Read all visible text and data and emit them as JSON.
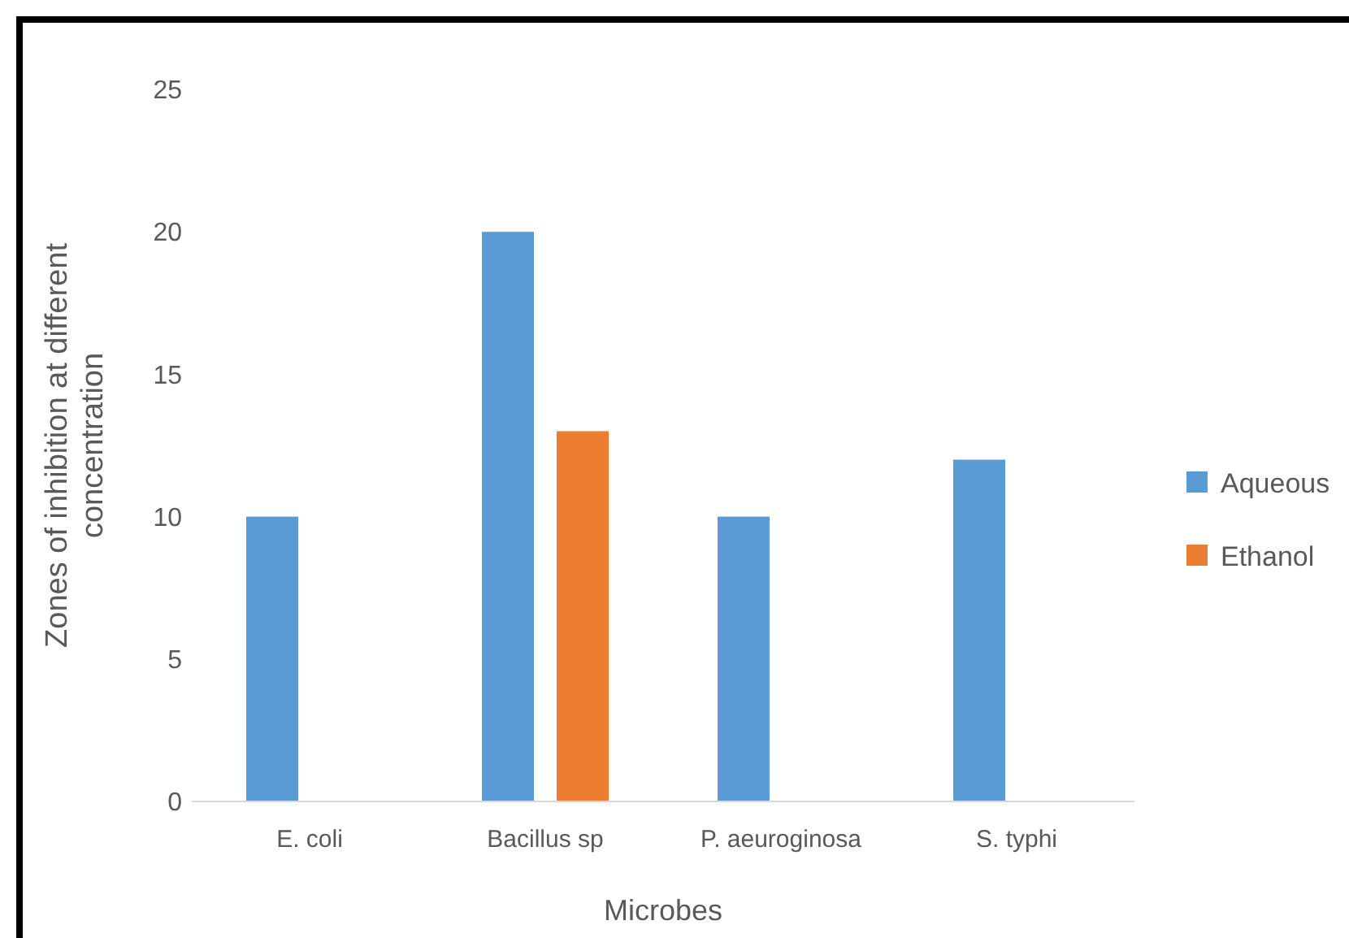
{
  "chart_data": {
    "type": "bar",
    "xlabel": "Microbes",
    "ylabel": "Zones of inhibition at different concentration",
    "categories": [
      "E. coli",
      "Bacillus sp",
      "P. aeuroginosa",
      "S. typhi"
    ],
    "series": [
      {
        "name": "Aqueous",
        "color": "#5b9bd5",
        "values": [
          10,
          20,
          10,
          12
        ]
      },
      {
        "name": "Ethanol",
        "color": "#ed7d31",
        "values": [
          null,
          13,
          null,
          null
        ]
      }
    ],
    "ylim": [
      0,
      25
    ],
    "yticks": [
      0,
      5,
      10,
      15,
      20,
      25
    ],
    "grid": false,
    "legend": "right"
  }
}
